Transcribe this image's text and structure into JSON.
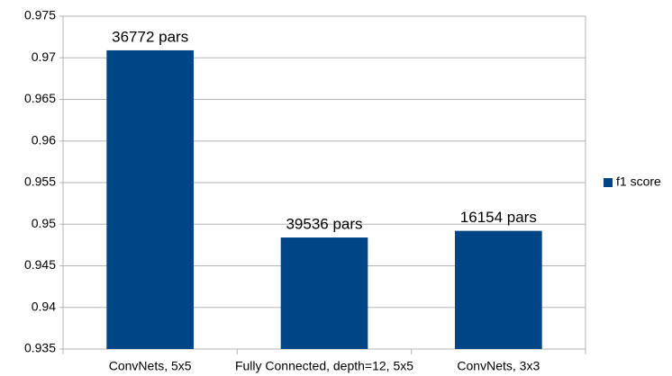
{
  "chart_data": {
    "type": "bar",
    "categories": [
      "ConvNets, 5x5",
      "Fully Connected, depth=12, 5x5",
      "ConvNets, 3x3"
    ],
    "series": [
      {
        "name": "f1 score",
        "color": "#004586",
        "values": [
          0.9709,
          0.9484,
          0.9492
        ]
      }
    ],
    "annotations": [
      "36772 pars",
      "39536 pars",
      "16154 pars"
    ],
    "ylim": [
      0.935,
      0.975
    ],
    "yticks": [
      0.935,
      0.94,
      0.945,
      0.95,
      0.955,
      0.96,
      0.965,
      0.97,
      0.975
    ],
    "grid": true,
    "legend": "right"
  }
}
